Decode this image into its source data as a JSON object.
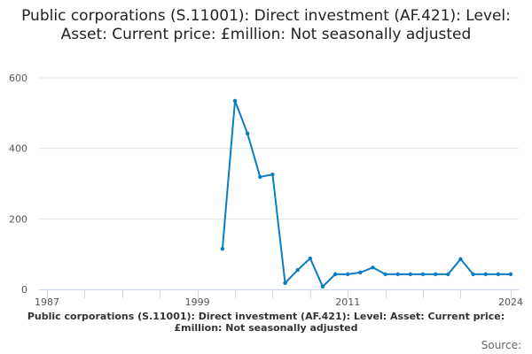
{
  "title": "Public corporations (S.11001): Direct investment (AF.421): Level: Asset: Current price: £million: Not seasonally adjusted",
  "footer_title": "Public corporations (S.11001): Direct investment (AF.421): Level: Asset: Current price: £million: Not seasonally adjusted",
  "source_label": "Source:",
  "chart_data": {
    "type": "line",
    "title": "Public corporations (S.11001): Direct investment (AF.421): Level: Asset: Current price: £million: Not seasonally adjusted",
    "x": [
      2001,
      2002,
      2003,
      2004,
      2005,
      2006,
      2007,
      2008,
      2009,
      2010,
      2011,
      2012,
      2013,
      2014,
      2015,
      2016,
      2017,
      2018,
      2019,
      2020,
      2021,
      2022,
      2023,
      2024
    ],
    "values": [
      115,
      535,
      442,
      319,
      326,
      18,
      55,
      88,
      8,
      43,
      43,
      48,
      62,
      43,
      43,
      43,
      43,
      43,
      43,
      86,
      43,
      43,
      43,
      43
    ],
    "xlim": [
      1987,
      2024
    ],
    "ylim": [
      0,
      600
    ],
    "x_tick_labels": [
      "1987",
      "1999",
      "2011",
      "2024"
    ],
    "y_tick_labels": [
      "0",
      "200",
      "400",
      "600"
    ],
    "grid": true,
    "line_color": "#0a7dc2",
    "markers": true
  }
}
